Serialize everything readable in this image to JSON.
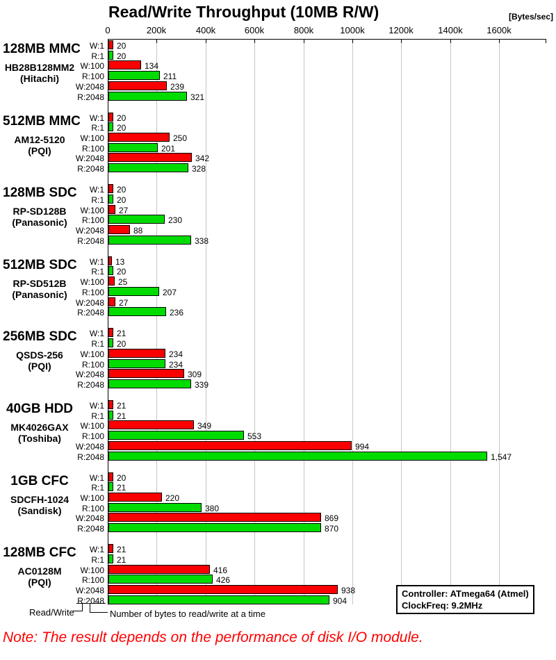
{
  "title": "Read/Write Throughput (10MB R/W)",
  "units_label": "[Bytes/sec]",
  "axis": {
    "tick_labels": [
      "0",
      "200k",
      "400k",
      "600k",
      "800k",
      "1000k",
      "1200k",
      "1400k",
      "1600k"
    ],
    "tick_step_k": 200,
    "plot_max_k": 1790,
    "grid": true
  },
  "colors": {
    "write_bar": "#fb0000",
    "read_bar": "#00dc00",
    "bar_border": "#000000",
    "gridline": "#c6c6c6",
    "note_text": "#ff0000"
  },
  "chart_data": {
    "type": "bar",
    "orientation": "horizontal",
    "title": "Read/Write Throughput (10MB R/W)",
    "value_unit": "kBytes/sec",
    "axis_unit": "Bytes/sec",
    "xlim_k": [
      0,
      1790
    ],
    "row_labels": [
      "W:1",
      "R:1",
      "W:100",
      "R:100",
      "W:2048",
      "R:2048"
    ],
    "legend": {
      "W": "Write (red)",
      "R": "Read (green)"
    },
    "groups": [
      {
        "name": "128MB MMC",
        "model": "HB28B128MM2",
        "maker": "(Hitachi)",
        "values_k": [
          20,
          20,
          134,
          211,
          239,
          321
        ],
        "value_labels": [
          "20",
          "20",
          "134",
          "211",
          "239",
          "321"
        ]
      },
      {
        "name": "512MB MMC",
        "model": "AM12-5120",
        "maker": "(PQI)",
        "values_k": [
          20,
          20,
          250,
          201,
          342,
          328
        ],
        "value_labels": [
          "20",
          "20",
          "250",
          "201",
          "342",
          "328"
        ]
      },
      {
        "name": "128MB SDC",
        "model": "RP-SD128B",
        "maker": "(Panasonic)",
        "values_k": [
          20,
          20,
          27,
          230,
          88,
          338
        ],
        "value_labels": [
          "20",
          "20",
          "27",
          "230",
          "88",
          "338"
        ]
      },
      {
        "name": "512MB SDC",
        "model": "RP-SD512B",
        "maker": "(Panasonic)",
        "values_k": [
          13,
          20,
          25,
          207,
          27,
          236
        ],
        "value_labels": [
          "13",
          "20",
          "25",
          "207",
          "27",
          "236"
        ]
      },
      {
        "name": "256MB SDC",
        "model": "QSDS-256",
        "maker": "(PQI)",
        "values_k": [
          21,
          20,
          234,
          234,
          309,
          339
        ],
        "value_labels": [
          "21",
          "20",
          "234",
          "234",
          "309",
          "339"
        ]
      },
      {
        "name": "40GB HDD",
        "model": "MK4026GAX",
        "maker": "(Toshiba)",
        "values_k": [
          21,
          21,
          349,
          553,
          994,
          1547
        ],
        "value_labels": [
          "21",
          "21",
          "349",
          "553",
          "994",
          "1,547"
        ]
      },
      {
        "name": "1GB CFC",
        "model": "SDCFH-1024",
        "maker": "(Sandisk)",
        "values_k": [
          20,
          21,
          220,
          380,
          869,
          870
        ],
        "value_labels": [
          "20",
          "21",
          "220",
          "380",
          "869",
          "870"
        ]
      },
      {
        "name": "128MB CFC",
        "model": "AC0128M",
        "maker": "(PQI)",
        "values_k": [
          21,
          21,
          416,
          426,
          938,
          904
        ],
        "value_labels": [
          "21",
          "21",
          "416",
          "426",
          "938",
          "904"
        ]
      }
    ]
  },
  "footer": {
    "read_write_label": "Read/Write",
    "bytes_label": "Number of bytes to read/write at a time"
  },
  "info_box": {
    "controller": "Controller: ATmega64 (Atmel)",
    "clock": "ClockFreq: 9.2MHz"
  },
  "note": "Note: The result depends on the performance of disk I/O module."
}
